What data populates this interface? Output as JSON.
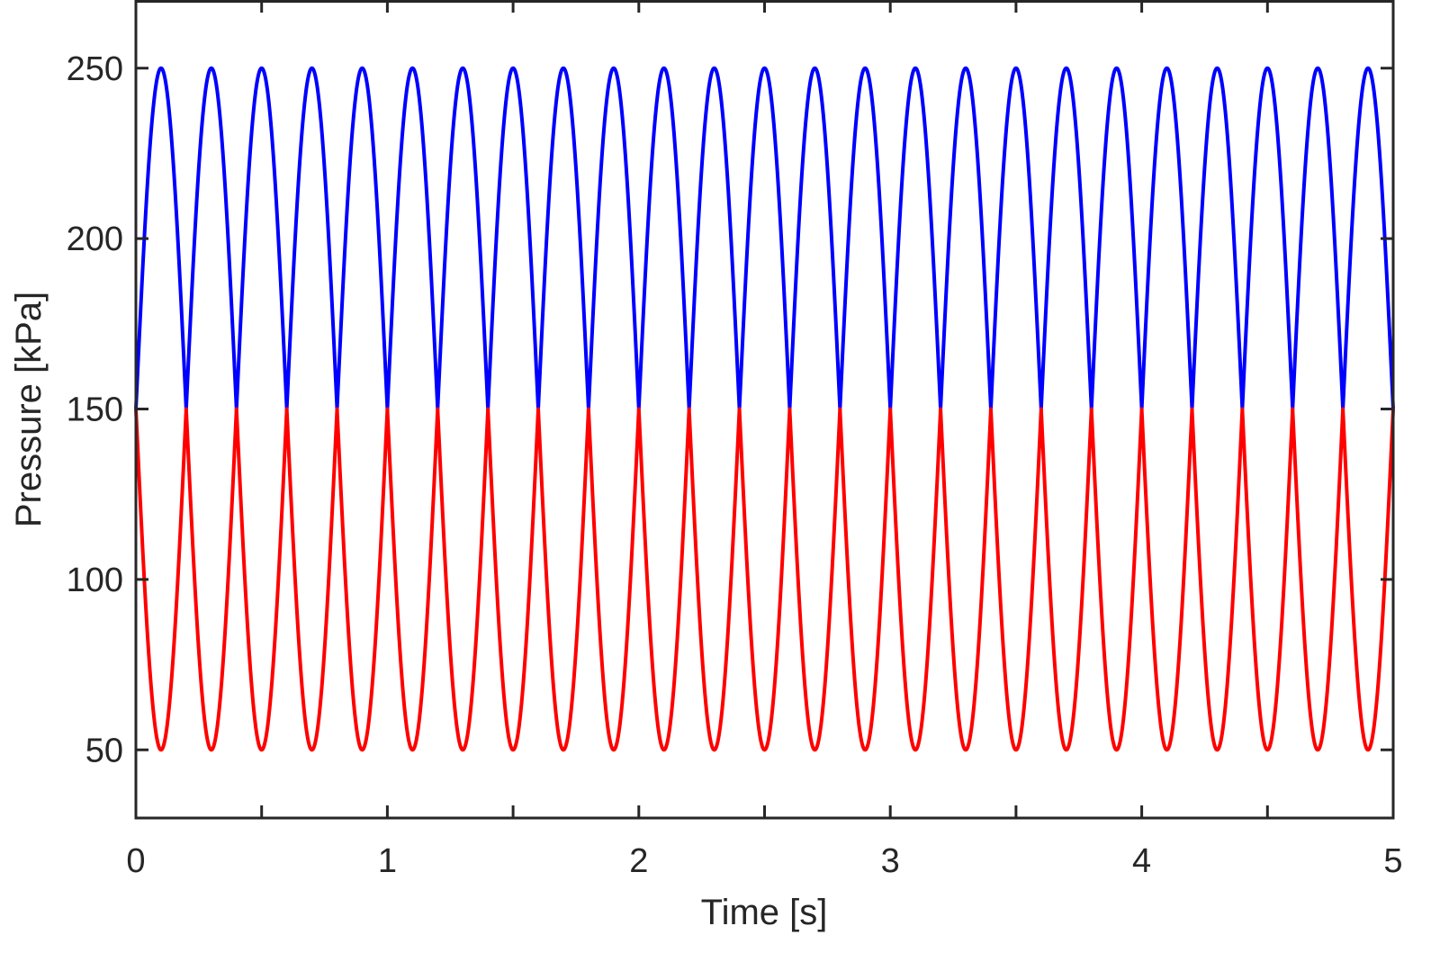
{
  "chart_data": {
    "type": "line",
    "title": "",
    "xlabel": "Time [s]",
    "ylabel": "Pressure [kPa]",
    "xlim": [
      0,
      5
    ],
    "ylim": [
      30,
      270
    ],
    "x_ticks": [
      0,
      1,
      2,
      3,
      4,
      5
    ],
    "x_tick_labels": [
      "0",
      "1",
      "2",
      "3",
      "4",
      "5"
    ],
    "y_ticks": [
      50,
      100,
      150,
      200,
      250
    ],
    "y_tick_labels": [
      "50",
      "100",
      "150",
      "200",
      "250"
    ],
    "grid": false,
    "legend": "none",
    "series": [
      {
        "color": "#0000ff",
        "description": "half-wave: 150 + 100*|sin(2*pi*2.5*t)|",
        "offset": 150,
        "amplitude": 100,
        "frequency_hz": 2.5,
        "x": [
          0,
          0.1,
          0.2,
          0.3,
          0.4,
          0.5,
          0.6,
          0.7,
          0.8,
          0.9,
          1.0
        ],
        "y": [
          150,
          250,
          150,
          250,
          150,
          250,
          150,
          250,
          150,
          250,
          150
        ]
      },
      {
        "color": "#ff0000",
        "description": "half-wave: 150 - 100*|sin(2*pi*2.5*t)|",
        "offset": 150,
        "amplitude": -100,
        "frequency_hz": 2.5,
        "x": [
          0,
          0.1,
          0.2,
          0.3,
          0.4,
          0.5,
          0.6,
          0.7,
          0.8,
          0.9,
          1.0
        ],
        "y": [
          150,
          50,
          150,
          50,
          150,
          50,
          150,
          50,
          150,
          50,
          150
        ]
      }
    ],
    "t_start": 0,
    "t_end": 5
  }
}
